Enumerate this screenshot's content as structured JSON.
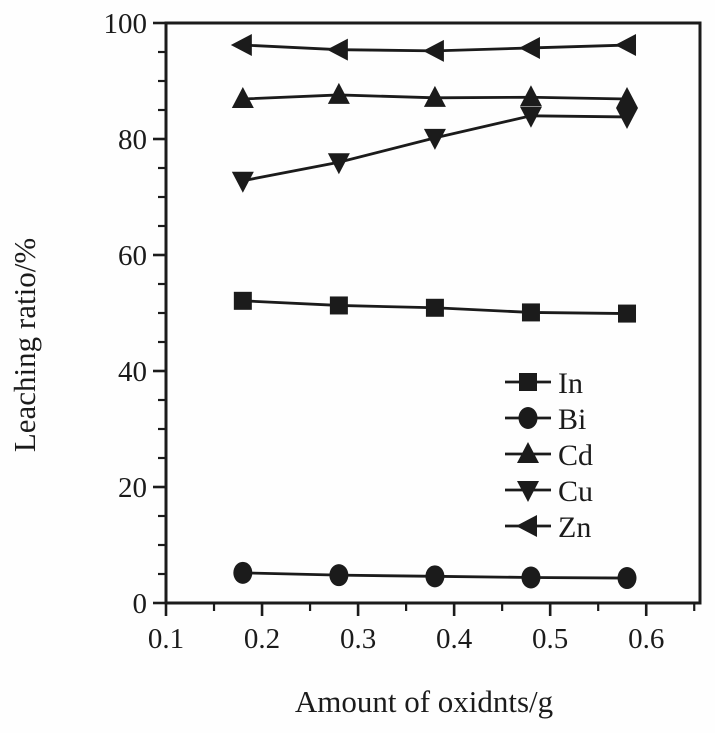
{
  "figure": {
    "background": "#fefefe",
    "ink": "#1b1b1b"
  },
  "chart_data": {
    "type": "line",
    "title": "",
    "xlabel": "Amount of oxidnts/g",
    "ylabel": "Leaching ratio/%",
    "x": [
      0.18,
      0.28,
      0.38,
      0.48,
      0.58
    ],
    "series": [
      {
        "name": "In",
        "marker": "square",
        "values": [
          52.1,
          51.3,
          50.9,
          50.1,
          49.9
        ]
      },
      {
        "name": "Bi",
        "marker": "circle",
        "values": [
          5.2,
          4.8,
          4.6,
          4.4,
          4.3
        ]
      },
      {
        "name": "Cd",
        "marker": "triangle-up",
        "values": [
          86.9,
          87.6,
          87.1,
          87.2,
          86.9
        ]
      },
      {
        "name": "Cu",
        "marker": "triangle-down",
        "values": [
          72.8,
          76.0,
          80.2,
          84.0,
          83.8
        ]
      },
      {
        "name": "Zn",
        "marker": "triangle-left",
        "values": [
          96.2,
          95.4,
          95.2,
          95.7,
          96.2
        ]
      }
    ],
    "legend": [
      "In",
      "Bi",
      "Cd",
      "Cu",
      "Zn"
    ],
    "legend_position": "inside-right-middle",
    "xlim": [
      0.1,
      0.656
    ],
    "ylim": [
      0,
      100
    ],
    "x_major_ticks": [
      0.1,
      0.2,
      0.3,
      0.4,
      0.5,
      0.6
    ],
    "x_tick_labels": [
      "0.1",
      "0.2",
      "0.3",
      "0.4",
      "0.5",
      "0.6"
    ],
    "x_minor_step": 0.05,
    "y_major_ticks": [
      0,
      20,
      40,
      60,
      80,
      100
    ],
    "y_tick_labels": [
      "0",
      "20",
      "40",
      "60",
      "80",
      "100"
    ],
    "y_minor_step": 5,
    "grid": false
  }
}
